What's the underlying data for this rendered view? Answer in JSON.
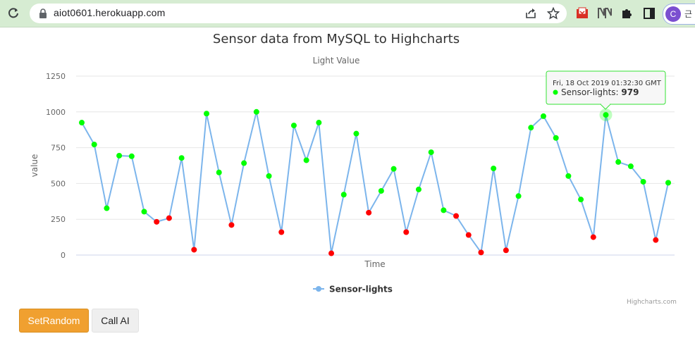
{
  "browser": {
    "url": "aiot0601.herokuapp.com",
    "profile_initial": "C",
    "profile_text": "근"
  },
  "chart_data": {
    "type": "line",
    "title": "Sensor data from MySQL to Highcharts",
    "subtitle": "Light Value",
    "xlabel": "Time",
    "ylabel": "value",
    "ylim": [
      0,
      1250
    ],
    "yticks": [
      0,
      250,
      500,
      750,
      1000,
      1250
    ],
    "grid": true,
    "legend": "bottom-center",
    "series": [
      {
        "name": "Sensor-lights",
        "values": [
          925,
          772,
          327,
          694,
          690,
          303,
          232,
          258,
          678,
          37,
          988,
          577,
          210,
          642,
          1000,
          552,
          160,
          905,
          662,
          925,
          12,
          422,
          848,
          296,
          448,
          602,
          160,
          458,
          718,
          313,
          273,
          140,
          18,
          605,
          33,
          412,
          890,
          970,
          818,
          552,
          388,
          125,
          979,
          650,
          620,
          512,
          105,
          505
        ]
      }
    ],
    "colors": {
      "line": "#7cb5ec",
      "high_point": "#00ff00",
      "low_point": "#ff0000",
      "threshold": 300
    },
    "tooltip": {
      "index": 42,
      "date": "Fri, 18 Oct 2019 01:32:30 GMT",
      "series": "Sensor-lights",
      "value": "979"
    },
    "credits": "Highcharts.com"
  },
  "buttons": {
    "set_random": "SetRandom",
    "call_ai": "Call AI"
  }
}
